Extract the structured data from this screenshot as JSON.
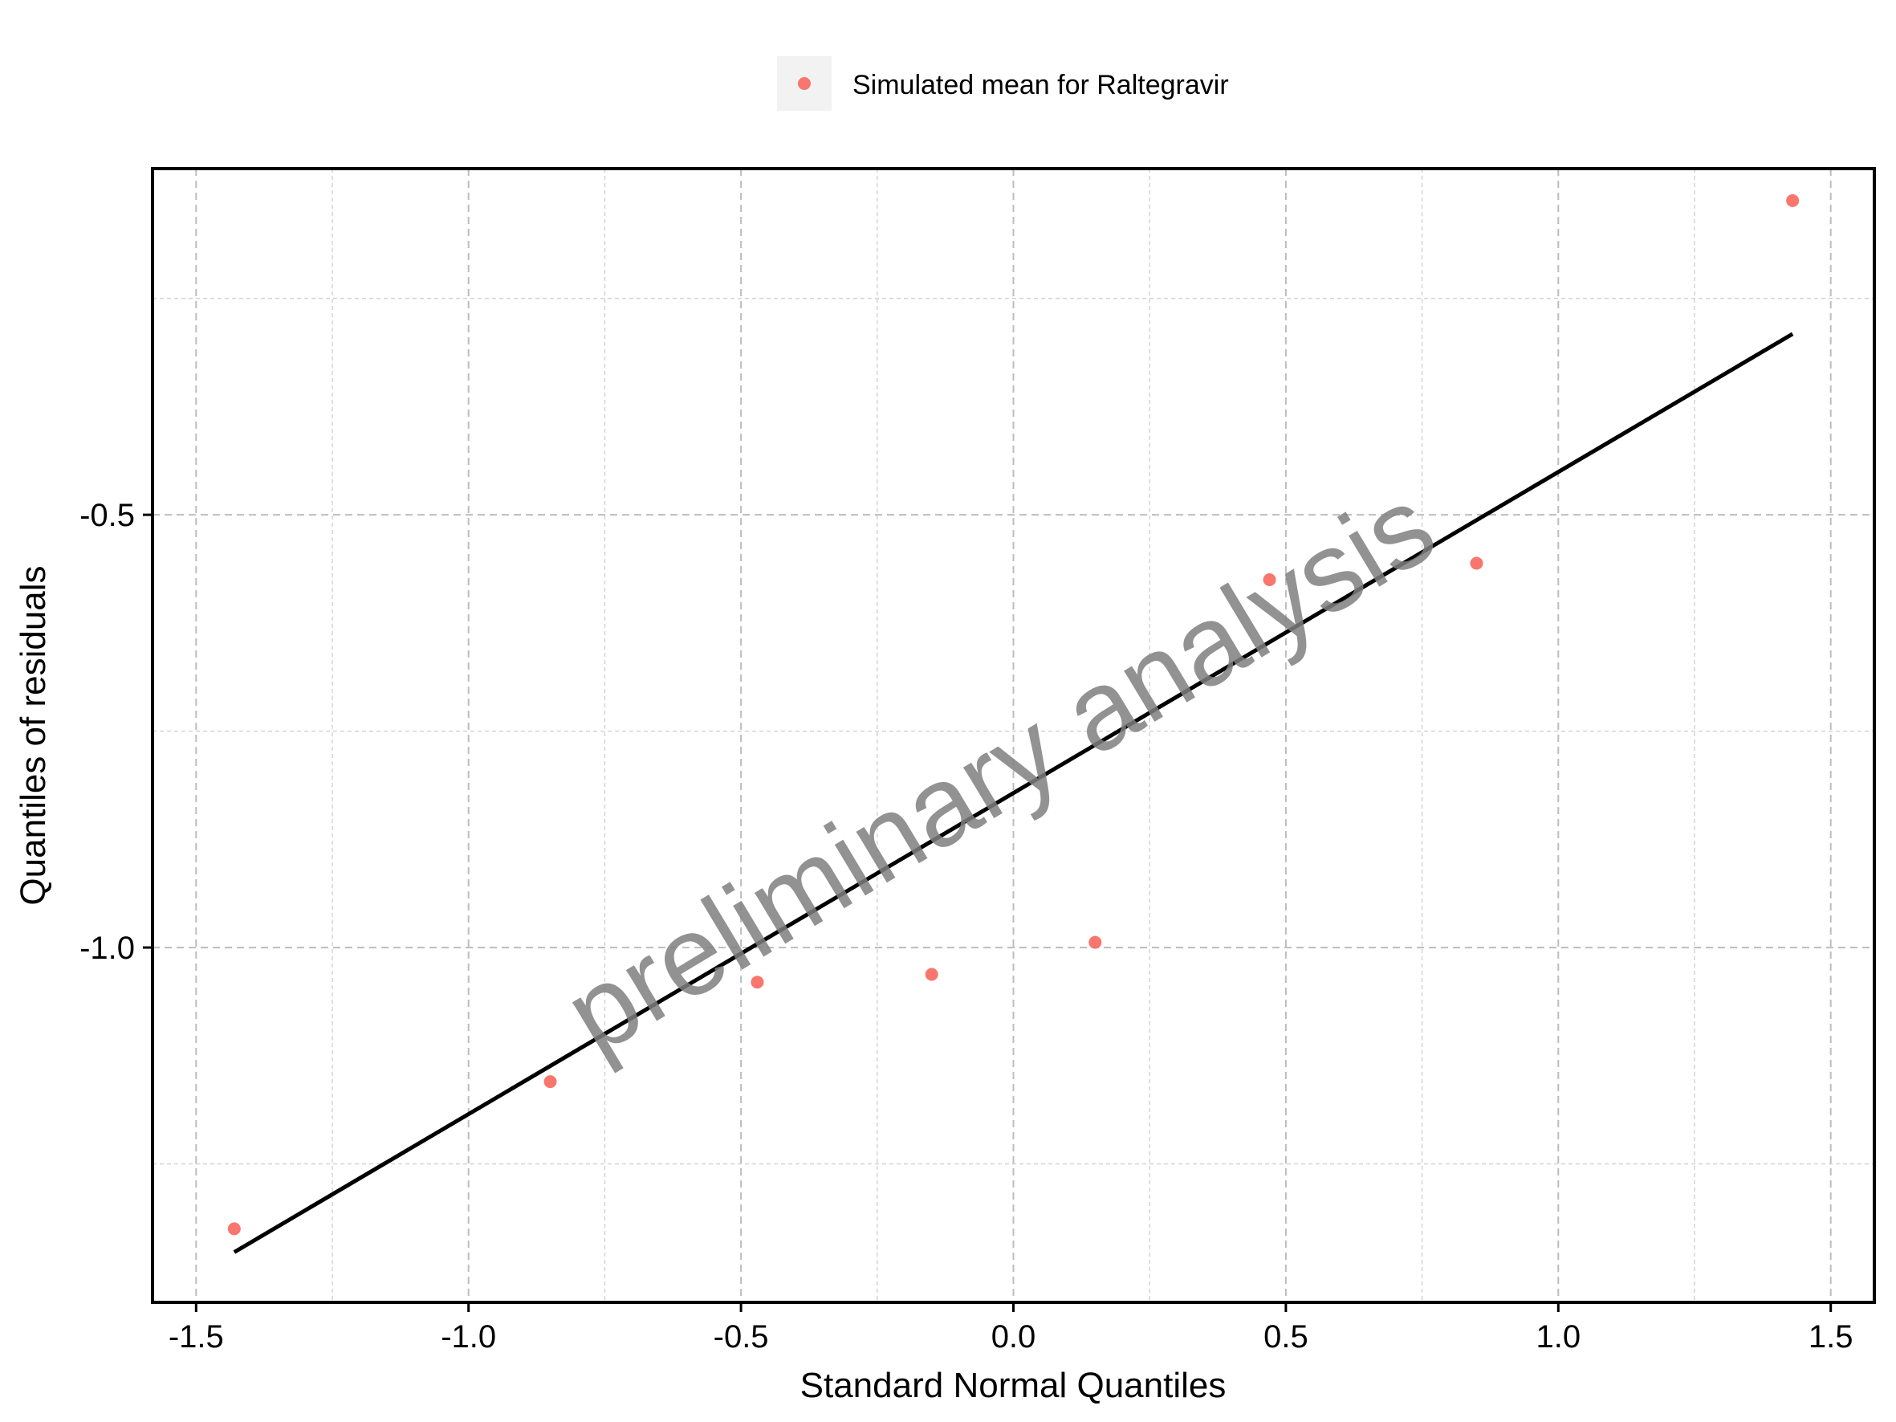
{
  "chart_data": {
    "type": "scatter",
    "xlabel": "Standard Normal Quantiles",
    "ylabel": "Quantiles of residuals",
    "xlim": [
      -1.58,
      1.58
    ],
    "ylim": [
      -1.41,
      -0.1
    ],
    "x_ticks": [
      -1.5,
      -1.0,
      -0.5,
      0.0,
      0.5,
      1.0,
      1.5
    ],
    "x_tick_labels": [
      "-1.5",
      "-1.0",
      "-0.5",
      "0.0",
      "0.5",
      "1.0",
      "1.5"
    ],
    "y_ticks": [
      -0.5,
      -1.0
    ],
    "y_tick_labels": [
      "-0.5",
      "-1.0"
    ],
    "x_minor_ticks": [
      -1.25,
      -0.75,
      -0.25,
      0.25,
      0.75,
      1.25
    ],
    "y_minor_ticks": [
      -0.25,
      -0.75,
      -1.25
    ],
    "grid": true,
    "legend_position": "top",
    "series": [
      {
        "name": "Simulated mean for Raltegravir",
        "color": "#f8766d",
        "points": [
          {
            "x": -1.43,
            "y": -1.325
          },
          {
            "x": -0.85,
            "y": -1.155
          },
          {
            "x": -0.47,
            "y": -1.04
          },
          {
            "x": -0.15,
            "y": -1.031
          },
          {
            "x": 0.15,
            "y": -0.994
          },
          {
            "x": 0.47,
            "y": -0.575
          },
          {
            "x": 0.85,
            "y": -0.556
          },
          {
            "x": 1.43,
            "y": -0.137
          }
        ]
      }
    ],
    "reference_line": {
      "color": "#000000",
      "points": [
        {
          "x": -1.43,
          "y": -1.352
        },
        {
          "x": 1.43,
          "y": -0.291
        }
      ]
    },
    "watermark": "preliminary analysis"
  }
}
